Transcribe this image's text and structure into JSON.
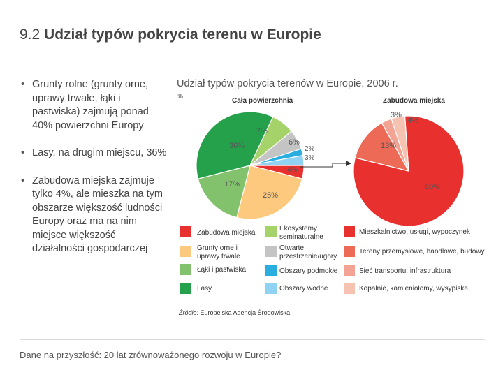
{
  "slide": {
    "title_number": "9.2",
    "title_text": "Udział typów pokrycia terenu w Europie",
    "bullets": [
      "Grunty rolne (grunty orne, uprawy trwałe, łąki i pastwiska) zajmują ponad 40% powierzchni Europy",
      "Lasy, na drugim miejscu, 36%",
      "Zabudowa miejska zajmuje tylko 4%, ale mieszka na tym obszarze większość ludności Europy oraz ma na nim miejsce większość działalności gospodarczej"
    ],
    "footer": "Dane na przyszłość: 20 lat zrównoważonego rozwoju w Europie?"
  },
  "chart_data": [
    {
      "type": "pie",
      "title": "Udział typów pokrycia terenów w Europie, 2006 r.",
      "unit": "%",
      "name": "Cała powierzchnia",
      "slices": [
        {
          "label": "Zabudowa miejska",
          "value": 4,
          "text": "4%",
          "color": "#e8312f"
        },
        {
          "label": "Grunty orne i uprawy trwałe",
          "value": 25,
          "text": "25%",
          "color": "#fcc97f"
        },
        {
          "label": "Łąki i pastwiska",
          "value": 17,
          "text": "17%",
          "color": "#82c26c"
        },
        {
          "label": "Lasy",
          "value": 36,
          "text": "36%",
          "color": "#24a14a"
        },
        {
          "label": "Ekosystemy seminaturalne",
          "value": 7,
          "text": "7%",
          "color": "#a6d26a"
        },
        {
          "label": "Otwarte przestrzenie/ugory",
          "value": 6,
          "text": "6%",
          "color": "#c4c4c4"
        },
        {
          "label": "Obszary podmokłe",
          "value": 2,
          "text": "2%",
          "color": "#2aaee0"
        },
        {
          "label": "Obszary wodne",
          "value": 3,
          "text": "3%",
          "color": "#8fd2f2"
        }
      ]
    },
    {
      "type": "pie",
      "name": "Zabudowa miejska",
      "slices": [
        {
          "label": "Mieszkalnictwo, usługi, wypoczynek",
          "value": 80,
          "text": "80%",
          "color": "#e8312f"
        },
        {
          "label": "Tereny przemysłowe, handlowe, budowy",
          "value": 13,
          "text": "13%",
          "color": "#ec6a56"
        },
        {
          "label": "Sieć transportu, infrastruktura",
          "value": 3,
          "text": "3%",
          "color": "#f3a394"
        },
        {
          "label": "Kopalnie, kamieniołomy, wysypiska",
          "value": 4,
          "text": "4%",
          "color": "#f6c2b2"
        }
      ]
    }
  ],
  "legend": [
    {
      "label": "Zabudowa miejska",
      "color": "#e8312f"
    },
    {
      "label": "Grunty orne i uprawy trwałe",
      "color": "#fcc97f"
    },
    {
      "label": "Łąki i pastwiska",
      "color": "#82c26c"
    },
    {
      "label": "Lasy",
      "color": "#24a14a"
    },
    {
      "label": "Ekosystemy seminaturalne",
      "color": "#a6d26a"
    },
    {
      "label": "Otwarte przestrzenie/ugory",
      "color": "#c4c4c4"
    },
    {
      "label": "Obszary podmokłe",
      "color": "#2aaee0"
    },
    {
      "label": "Obszary wodne",
      "color": "#8fd2f2"
    },
    {
      "label": "Mieszkalnictwo, usługi, wypoczynek",
      "color": "#e8312f"
    },
    {
      "label": "Tereny przemysłowe, handlowe, budowy",
      "color": "#ec6a56"
    },
    {
      "label": "Sieć transportu, infrastruktura",
      "color": "#f3a394"
    },
    {
      "label": "Kopalnie, kamieniołomy, wysypiska",
      "color": "#f6c2b2"
    }
  ],
  "source": {
    "prefix": "Źródło:",
    "text": " Europejska Agencja Środowiska"
  }
}
